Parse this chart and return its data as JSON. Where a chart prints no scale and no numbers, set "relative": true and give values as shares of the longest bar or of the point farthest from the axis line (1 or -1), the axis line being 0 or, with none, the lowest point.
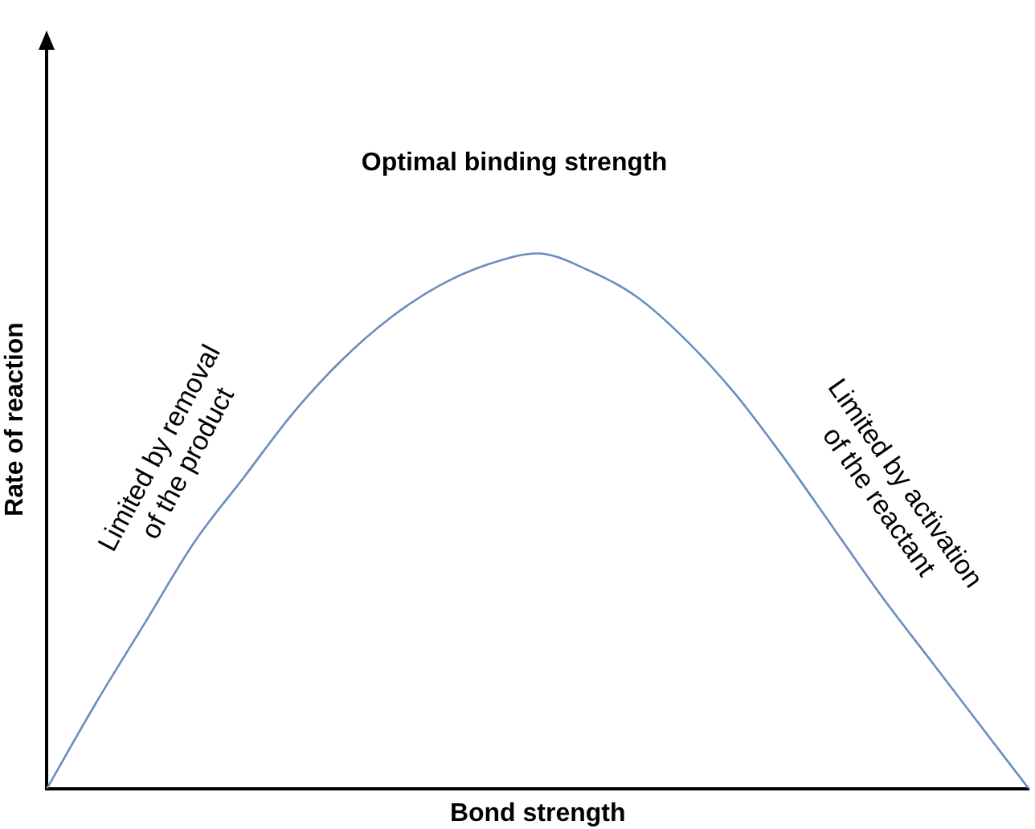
{
  "chart_data": {
    "type": "line",
    "relative": true,
    "title": "Optimal binding strength",
    "xlabel": "Bond strength",
    "ylabel": "Rate of reaction",
    "categories": [
      null,
      null,
      null,
      null,
      null,
      null,
      null,
      null,
      null,
      null,
      null,
      null,
      null,
      null,
      null,
      null,
      null,
      null,
      null,
      null,
      null
    ],
    "series": [
      {
        "color": "#6a8dbd",
        "values": [
          0,
          0.16,
          0.31,
          0.46,
          0.58,
          0.7,
          0.8,
          0.88,
          0.94,
          0.98,
          1.0,
          0.97,
          0.92,
          0.84,
          0.74,
          0.62,
          0.49,
          0.36,
          0.24,
          0.12,
          0
        ]
      }
    ],
    "annotations": [
      "Limited by removal of the product",
      "Limited by activation of the reactant"
    ],
    "grid": false,
    "legend": false,
    "marker": "none",
    "line_style": "solid"
  }
}
